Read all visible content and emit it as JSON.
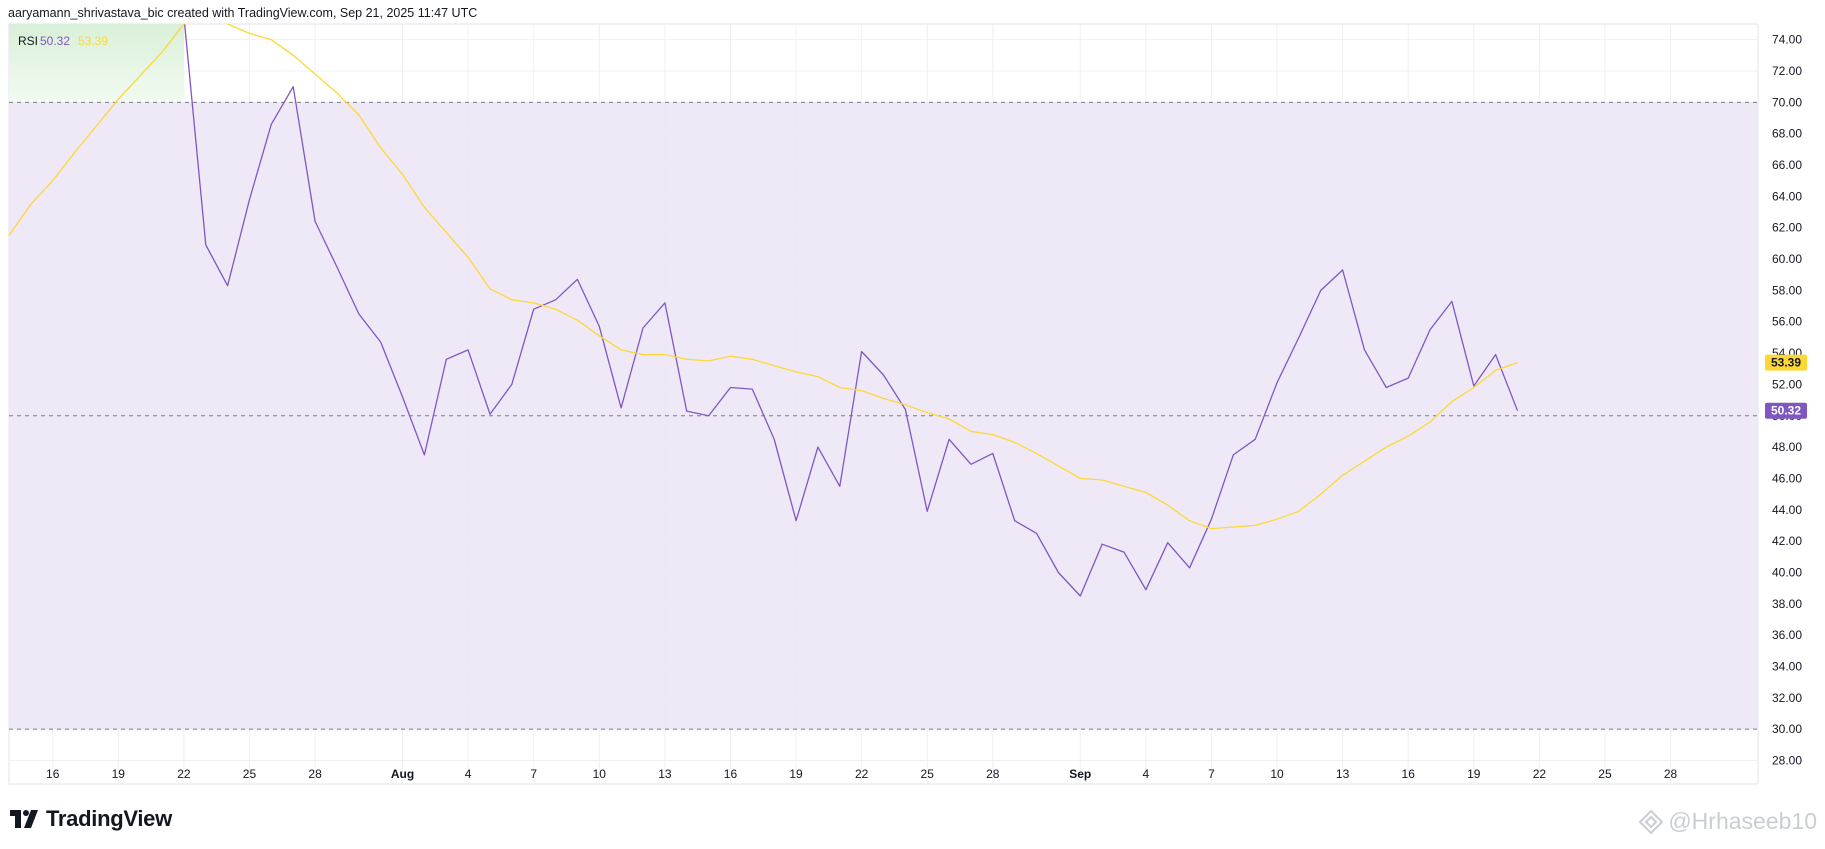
{
  "header": {
    "text": "aaryamann_shrivastava_bic created with TradingView.com, Sep 21, 2025 11:47 UTC"
  },
  "legend": {
    "name": "RSI",
    "rsi_value": "50.32",
    "ma_value": "53.39"
  },
  "colors": {
    "rsi": "#7e57c2",
    "rsi_ma": "#fdd835",
    "band": "#ede7f6",
    "overbought_fill": "#e8f5e9",
    "grid": "#eef0f3",
    "dashed": "#787b86"
  },
  "footer": {
    "brand": "TradingView",
    "watermark": "@Hrhaseeb10"
  },
  "chart_data": {
    "type": "line",
    "ylim": [
      26.5,
      75
    ],
    "yticks": [
      "28.00",
      "30.00",
      "32.00",
      "34.00",
      "36.00",
      "38.00",
      "40.00",
      "42.00",
      "44.00",
      "46.00",
      "48.00",
      "50.00",
      "52.00",
      "54.00",
      "56.00",
      "58.00",
      "60.00",
      "62.00",
      "64.00",
      "66.00",
      "68.00",
      "70.00",
      "72.00",
      "74.00"
    ],
    "levels": {
      "upper": 70,
      "middle": 50,
      "lower": 30
    },
    "xticks": [
      {
        "label": "16",
        "x": "2025-07-16"
      },
      {
        "label": "19",
        "x": "2025-07-19"
      },
      {
        "label": "22",
        "x": "2025-07-22"
      },
      {
        "label": "25",
        "x": "2025-07-25"
      },
      {
        "label": "28",
        "x": "2025-07-28"
      },
      {
        "label": "Aug",
        "x": "2025-08-01",
        "bold": true
      },
      {
        "label": "4",
        "x": "2025-08-04"
      },
      {
        "label": "7",
        "x": "2025-08-07"
      },
      {
        "label": "10",
        "x": "2025-08-10"
      },
      {
        "label": "13",
        "x": "2025-08-13"
      },
      {
        "label": "16",
        "x": "2025-08-16"
      },
      {
        "label": "19",
        "x": "2025-08-19"
      },
      {
        "label": "22",
        "x": "2025-08-22"
      },
      {
        "label": "25",
        "x": "2025-08-25"
      },
      {
        "label": "28",
        "x": "2025-08-28"
      },
      {
        "label": "Sep",
        "x": "2025-09-01",
        "bold": true
      },
      {
        "label": "4",
        "x": "2025-09-04"
      },
      {
        "label": "7",
        "x": "2025-09-07"
      },
      {
        "label": "10",
        "x": "2025-09-10"
      },
      {
        "label": "13",
        "x": "2025-09-13"
      },
      {
        "label": "16",
        "x": "2025-09-16"
      },
      {
        "label": "19",
        "x": "2025-09-19"
      },
      {
        "label": "22",
        "x": "2025-09-22"
      },
      {
        "label": "25",
        "x": "2025-09-25"
      },
      {
        "label": "28",
        "x": "2025-09-28"
      }
    ],
    "xlim": [
      "2025-07-14",
      "2025-10-02"
    ],
    "series": [
      {
        "name": "RSI",
        "values": [
          [
            "2025-07-21",
            80.0
          ],
          [
            "2025-07-22",
            75.5
          ],
          [
            "2025-07-23",
            60.9
          ],
          [
            "2025-07-24",
            58.3
          ],
          [
            "2025-07-25",
            63.8
          ],
          [
            "2025-07-26",
            68.6
          ],
          [
            "2025-07-27",
            71.0
          ],
          [
            "2025-07-28",
            62.4
          ],
          [
            "2025-07-29",
            59.5
          ],
          [
            "2025-07-30",
            56.5
          ],
          [
            "2025-07-31",
            54.7
          ],
          [
            "2025-08-01",
            51.2
          ],
          [
            "2025-08-02",
            47.5
          ],
          [
            "2025-08-03",
            53.6
          ],
          [
            "2025-08-04",
            54.2
          ],
          [
            "2025-08-05",
            50.1
          ],
          [
            "2025-08-06",
            52.0
          ],
          [
            "2025-08-07",
            56.8
          ],
          [
            "2025-08-08",
            57.4
          ],
          [
            "2025-08-09",
            58.7
          ],
          [
            "2025-08-10",
            55.7
          ],
          [
            "2025-08-11",
            50.5
          ],
          [
            "2025-08-12",
            55.6
          ],
          [
            "2025-08-13",
            57.2
          ],
          [
            "2025-08-14",
            50.3
          ],
          [
            "2025-08-15",
            50.0
          ],
          [
            "2025-08-16",
            51.8
          ],
          [
            "2025-08-17",
            51.7
          ],
          [
            "2025-08-18",
            48.5
          ],
          [
            "2025-08-19",
            43.3
          ],
          [
            "2025-08-20",
            48.0
          ],
          [
            "2025-08-21",
            45.5
          ],
          [
            "2025-08-22",
            54.1
          ],
          [
            "2025-08-23",
            52.6
          ],
          [
            "2025-08-24",
            50.4
          ],
          [
            "2025-08-25",
            43.9
          ],
          [
            "2025-08-26",
            48.5
          ],
          [
            "2025-08-27",
            46.9
          ],
          [
            "2025-08-28",
            47.6
          ],
          [
            "2025-08-29",
            43.3
          ],
          [
            "2025-08-30",
            42.5
          ],
          [
            "2025-08-31",
            40.0
          ],
          [
            "2025-09-01",
            38.5
          ],
          [
            "2025-09-02",
            41.8
          ],
          [
            "2025-09-03",
            41.3
          ],
          [
            "2025-09-04",
            38.9
          ],
          [
            "2025-09-05",
            41.9
          ],
          [
            "2025-09-06",
            40.3
          ],
          [
            "2025-09-07",
            43.4
          ],
          [
            "2025-09-08",
            47.5
          ],
          [
            "2025-09-09",
            48.5
          ],
          [
            "2025-09-10",
            52.1
          ],
          [
            "2025-09-11",
            55.0
          ],
          [
            "2025-09-12",
            58.0
          ],
          [
            "2025-09-13",
            59.3
          ],
          [
            "2025-09-14",
            54.2
          ],
          [
            "2025-09-15",
            51.8
          ],
          [
            "2025-09-16",
            52.4
          ],
          [
            "2025-09-17",
            55.5
          ],
          [
            "2025-09-18",
            57.3
          ],
          [
            "2025-09-19",
            51.9
          ],
          [
            "2025-09-20",
            53.9
          ],
          [
            "2025-09-21",
            50.32
          ]
        ]
      },
      {
        "name": "RSI-based MA",
        "values": [
          [
            "2025-07-14",
            61.5
          ],
          [
            "2025-07-15",
            63.5
          ],
          [
            "2025-07-16",
            65.0
          ],
          [
            "2025-07-17",
            66.8
          ],
          [
            "2025-07-18",
            68.5
          ],
          [
            "2025-07-19",
            70.2
          ],
          [
            "2025-07-20",
            71.7
          ],
          [
            "2025-07-21",
            73.2
          ],
          [
            "2025-07-22",
            75.0
          ],
          [
            "2025-07-23",
            75.5
          ],
          [
            "2025-07-24",
            75.0
          ],
          [
            "2025-07-25",
            74.4
          ],
          [
            "2025-07-26",
            74.0
          ],
          [
            "2025-07-27",
            73.0
          ],
          [
            "2025-07-28",
            71.8
          ],
          [
            "2025-07-29",
            70.6
          ],
          [
            "2025-07-30",
            69.2
          ],
          [
            "2025-07-31",
            67.1
          ],
          [
            "2025-08-01",
            65.4
          ],
          [
            "2025-08-02",
            63.3
          ],
          [
            "2025-08-03",
            61.7
          ],
          [
            "2025-08-04",
            60.1
          ],
          [
            "2025-08-05",
            58.1
          ],
          [
            "2025-08-06",
            57.4
          ],
          [
            "2025-08-07",
            57.2
          ],
          [
            "2025-08-08",
            56.8
          ],
          [
            "2025-08-09",
            56.1
          ],
          [
            "2025-08-10",
            55.1
          ],
          [
            "2025-08-11",
            54.2
          ],
          [
            "2025-08-12",
            53.9
          ],
          [
            "2025-08-13",
            53.9
          ],
          [
            "2025-08-14",
            53.6
          ],
          [
            "2025-08-15",
            53.5
          ],
          [
            "2025-08-16",
            53.8
          ],
          [
            "2025-08-17",
            53.6
          ],
          [
            "2025-08-18",
            53.2
          ],
          [
            "2025-08-19",
            52.8
          ],
          [
            "2025-08-20",
            52.5
          ],
          [
            "2025-08-21",
            51.8
          ],
          [
            "2025-08-22",
            51.6
          ],
          [
            "2025-08-23",
            51.1
          ],
          [
            "2025-08-24",
            50.7
          ],
          [
            "2025-08-25",
            50.2
          ],
          [
            "2025-08-26",
            49.8
          ],
          [
            "2025-08-27",
            49.0
          ],
          [
            "2025-08-28",
            48.8
          ],
          [
            "2025-08-29",
            48.3
          ],
          [
            "2025-08-30",
            47.6
          ],
          [
            "2025-08-31",
            46.8
          ],
          [
            "2025-09-01",
            46.0
          ],
          [
            "2025-09-02",
            45.9
          ],
          [
            "2025-09-03",
            45.5
          ],
          [
            "2025-09-04",
            45.1
          ],
          [
            "2025-09-05",
            44.3
          ],
          [
            "2025-09-06",
            43.3
          ],
          [
            "2025-09-07",
            42.8
          ],
          [
            "2025-09-08",
            42.9
          ],
          [
            "2025-09-09",
            43.0
          ],
          [
            "2025-09-10",
            43.4
          ],
          [
            "2025-09-11",
            43.9
          ],
          [
            "2025-09-12",
            45.0
          ],
          [
            "2025-09-13",
            46.2
          ],
          [
            "2025-09-14",
            47.1
          ],
          [
            "2025-09-15",
            48.0
          ],
          [
            "2025-09-16",
            48.7
          ],
          [
            "2025-09-17",
            49.6
          ],
          [
            "2025-09-18",
            50.9
          ],
          [
            "2025-09-19",
            51.8
          ],
          [
            "2025-09-20",
            52.9
          ],
          [
            "2025-09-21",
            53.39
          ]
        ]
      }
    ],
    "grid": true
  }
}
